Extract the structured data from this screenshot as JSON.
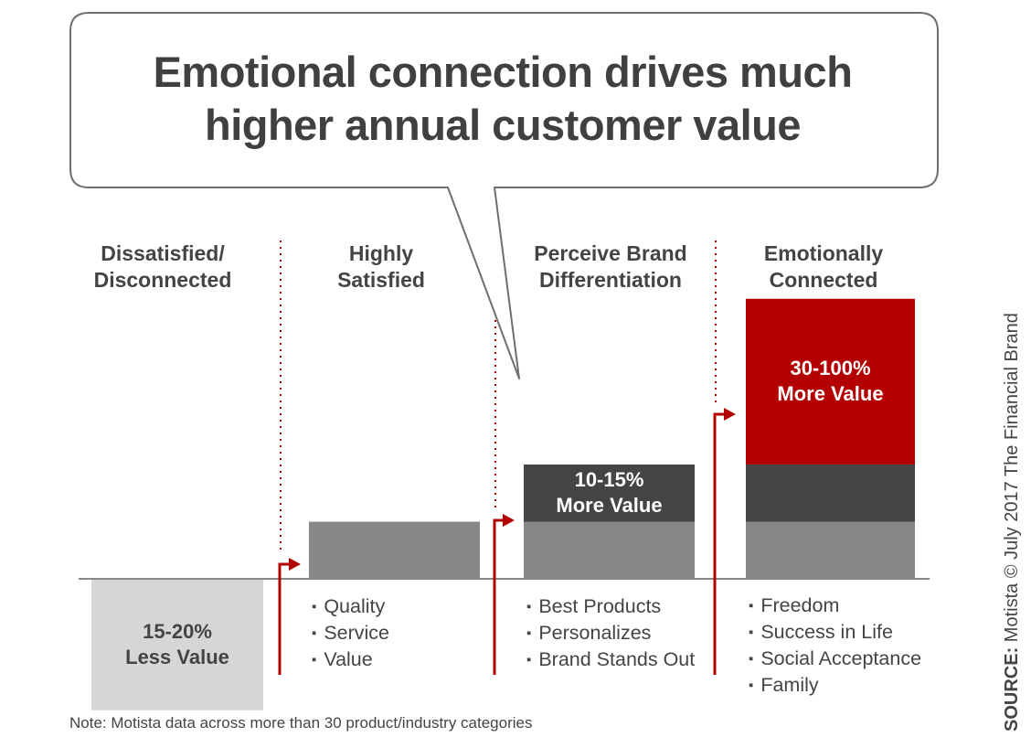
{
  "colors": {
    "red": "#B30000",
    "dark_gray": "#444444",
    "mid_gray": "#888888",
    "light_gray": "#D6D6D6",
    "text": "#444444"
  },
  "chart_data": {
    "type": "bar",
    "title": "Emotional connection drives much higher annual customer value",
    "categories": [
      {
        "label_line1": "Dissatisfied/",
        "label_line2": "Disconnected"
      },
      {
        "label_line1": "Highly",
        "label_line2": "Satisfied"
      },
      {
        "label_line1": "Perceive Brand",
        "label_line2": "Differentiation"
      },
      {
        "label_line1": "Emotionally",
        "label_line2": "Connected"
      }
    ],
    "segments": [
      {
        "category": 0,
        "name": "less value",
        "from": -2.3,
        "to": 0,
        "color": "light_gray"
      },
      {
        "category": 1,
        "name": "base",
        "from": 0,
        "to": 1,
        "color": "mid_gray"
      },
      {
        "category": 2,
        "name": "base",
        "from": 0,
        "to": 1,
        "color": "mid_gray"
      },
      {
        "category": 2,
        "name": "added",
        "from": 1,
        "to": 2,
        "color": "dark_gray"
      },
      {
        "category": 3,
        "name": "base",
        "from": 0,
        "to": 1,
        "color": "mid_gray"
      },
      {
        "category": 3,
        "name": "added",
        "from": 1,
        "to": 2,
        "color": "dark_gray"
      },
      {
        "category": 3,
        "name": "emotional",
        "from": 2,
        "to": 4.9,
        "color": "red"
      }
    ],
    "value_labels": [
      {
        "category": 0,
        "line1": "15-20%",
        "line2": "Less Value",
        "at": -1.15,
        "color": "text"
      },
      {
        "category": 2,
        "line1": "10-15%",
        "line2": "More Value",
        "at": 1.5,
        "color": "white"
      },
      {
        "category": 3,
        "line1": "30-100%",
        "line2": "More Value",
        "at": 3.45,
        "color": "white"
      }
    ],
    "drivers": [
      [],
      [
        "Quality",
        "Service",
        "Value"
      ],
      [
        "Best Products",
        "Personalizes",
        "Brand Stands Out"
      ],
      [
        "Freedom",
        "Success in Life",
        "Social Acceptance",
        "Family"
      ]
    ],
    "y_range": [
      -2.3,
      4.9
    ]
  },
  "note": "Note: Motista data across more than 30 product/industry categories",
  "source": {
    "prefix": "SOURCE:",
    "text": "Motista © July 2017 The Financial Brand"
  }
}
